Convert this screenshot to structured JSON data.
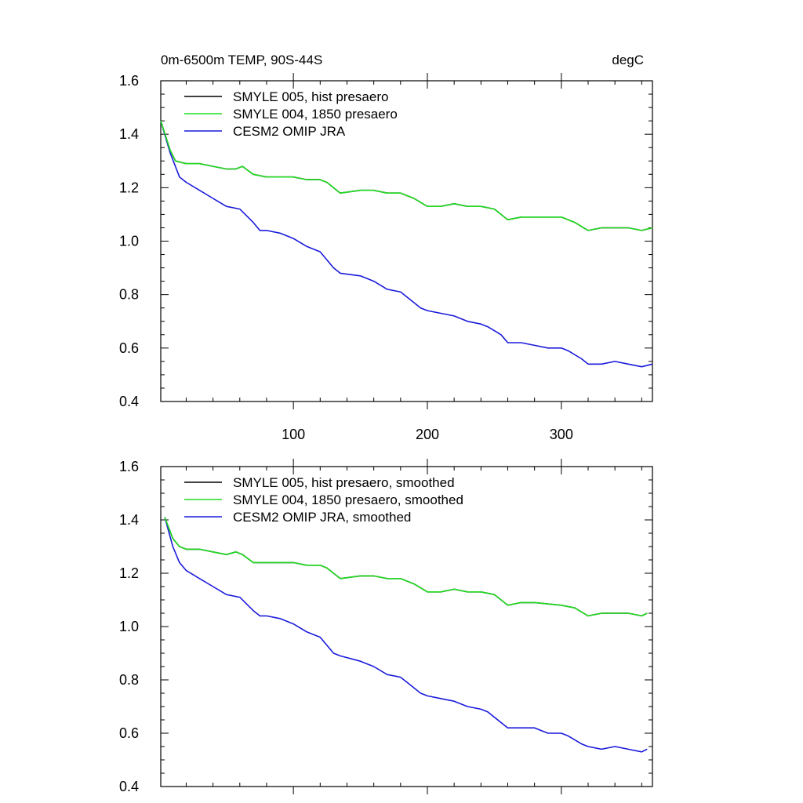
{
  "header": {
    "left": "0m-6500m TEMP, 90S-44S",
    "right": "degC"
  },
  "colors": {
    "hist": "#000000",
    "p1850": "#22dd22",
    "omip": "#1a1adb"
  },
  "chart_data": [
    {
      "type": "line",
      "title": "0m-6500m TEMP, 90S-44S",
      "units": "degC",
      "xlim": [
        1,
        368
      ],
      "ylim": [
        0.4,
        1.6
      ],
      "yticks": [
        "0.4",
        "0.6",
        "0.8",
        "1.0",
        "1.2",
        "1.4",
        "1.6"
      ],
      "xticks": [
        "100",
        "200",
        "300"
      ],
      "legend_position": "top-left",
      "series": [
        {
          "name": "SMYLE 005, hist presaero",
          "x": [
            1,
            8,
            12,
            20,
            30,
            40,
            50,
            57,
            62,
            70,
            80,
            90,
            100,
            110,
            120,
            125,
            135,
            150,
            160,
            170,
            180,
            190,
            200,
            210,
            220,
            230,
            240,
            250,
            260,
            270,
            280,
            300,
            310,
            320,
            330,
            340,
            350,
            360,
            368
          ],
          "values": [
            1.45,
            1.34,
            1.3,
            1.29,
            1.29,
            1.28,
            1.27,
            1.27,
            1.28,
            1.25,
            1.24,
            1.24,
            1.24,
            1.23,
            1.23,
            1.22,
            1.18,
            1.19,
            1.19,
            1.18,
            1.18,
            1.16,
            1.13,
            1.13,
            1.14,
            1.13,
            1.13,
            1.12,
            1.08,
            1.09,
            1.09,
            1.09,
            1.07,
            1.04,
            1.05,
            1.05,
            1.05,
            1.04,
            1.05
          ]
        },
        {
          "name": "SMYLE 004, 1850 presaero",
          "x": [
            1,
            8,
            12,
            20,
            30,
            40,
            50,
            57,
            62,
            70,
            80,
            90,
            100,
            110,
            120,
            125,
            135,
            150,
            160,
            170,
            180,
            190,
            200,
            210,
            220,
            230,
            240,
            250,
            260,
            270,
            280,
            300,
            310,
            320,
            330,
            340,
            350,
            360,
            368
          ],
          "values": [
            1.45,
            1.34,
            1.3,
            1.29,
            1.29,
            1.28,
            1.27,
            1.27,
            1.28,
            1.25,
            1.24,
            1.24,
            1.24,
            1.23,
            1.23,
            1.22,
            1.18,
            1.19,
            1.19,
            1.18,
            1.18,
            1.16,
            1.13,
            1.13,
            1.14,
            1.13,
            1.13,
            1.12,
            1.08,
            1.09,
            1.09,
            1.09,
            1.07,
            1.04,
            1.05,
            1.05,
            1.05,
            1.04,
            1.05
          ]
        },
        {
          "name": "CESM2 OMIP JRA",
          "x": [
            1,
            8,
            15,
            20,
            30,
            40,
            50,
            60,
            70,
            75,
            80,
            90,
            100,
            110,
            120,
            130,
            135,
            150,
            160,
            170,
            180,
            185,
            195,
            200,
            210,
            220,
            230,
            240,
            245,
            255,
            260,
            270,
            280,
            290,
            300,
            305,
            315,
            320,
            330,
            340,
            350,
            360,
            368
          ],
          "values": [
            1.45,
            1.33,
            1.24,
            1.22,
            1.19,
            1.16,
            1.13,
            1.12,
            1.07,
            1.04,
            1.04,
            1.03,
            1.01,
            0.98,
            0.96,
            0.9,
            0.88,
            0.87,
            0.85,
            0.82,
            0.81,
            0.79,
            0.75,
            0.74,
            0.73,
            0.72,
            0.7,
            0.69,
            0.68,
            0.65,
            0.62,
            0.62,
            0.61,
            0.6,
            0.6,
            0.59,
            0.56,
            0.54,
            0.54,
            0.55,
            0.54,
            0.53,
            0.54
          ]
        }
      ]
    },
    {
      "type": "line",
      "xlim": [
        1,
        368
      ],
      "ylim": [
        0.4,
        1.6
      ],
      "yticks": [
        "0.4",
        "0.6",
        "0.8",
        "1.0",
        "1.2",
        "1.4",
        "1.6"
      ],
      "xticks": [
        "",
        "",
        ""
      ],
      "legend_position": "top-left",
      "series": [
        {
          "name": "SMYLE 005, hist presaero, smoothed",
          "x": [
            4,
            10,
            15,
            20,
            30,
            40,
            50,
            57,
            62,
            70,
            80,
            90,
            100,
            110,
            120,
            125,
            135,
            150,
            160,
            170,
            180,
            190,
            200,
            210,
            220,
            230,
            240,
            250,
            260,
            270,
            280,
            300,
            310,
            320,
            330,
            340,
            350,
            360,
            364
          ],
          "values": [
            1.41,
            1.33,
            1.3,
            1.29,
            1.29,
            1.28,
            1.27,
            1.28,
            1.27,
            1.24,
            1.24,
            1.24,
            1.24,
            1.23,
            1.23,
            1.22,
            1.18,
            1.19,
            1.19,
            1.18,
            1.18,
            1.16,
            1.13,
            1.13,
            1.14,
            1.13,
            1.13,
            1.12,
            1.08,
            1.09,
            1.09,
            1.08,
            1.07,
            1.04,
            1.05,
            1.05,
            1.05,
            1.04,
            1.05
          ]
        },
        {
          "name": "SMYLE 004, 1850 presaero, smoothed",
          "x": [
            4,
            10,
            15,
            20,
            30,
            40,
            50,
            57,
            62,
            70,
            80,
            90,
            100,
            110,
            120,
            125,
            135,
            150,
            160,
            170,
            180,
            190,
            200,
            210,
            220,
            230,
            240,
            250,
            260,
            270,
            280,
            300,
            310,
            320,
            330,
            340,
            350,
            360,
            364
          ],
          "values": [
            1.41,
            1.33,
            1.3,
            1.29,
            1.29,
            1.28,
            1.27,
            1.28,
            1.27,
            1.24,
            1.24,
            1.24,
            1.24,
            1.23,
            1.23,
            1.22,
            1.18,
            1.19,
            1.19,
            1.18,
            1.18,
            1.16,
            1.13,
            1.13,
            1.14,
            1.13,
            1.13,
            1.12,
            1.08,
            1.09,
            1.09,
            1.08,
            1.07,
            1.04,
            1.05,
            1.05,
            1.05,
            1.04,
            1.05
          ]
        },
        {
          "name": "CESM2 OMIP JRA, smoothed",
          "x": [
            4,
            10,
            15,
            20,
            30,
            40,
            50,
            60,
            70,
            75,
            80,
            90,
            100,
            110,
            120,
            130,
            135,
            150,
            160,
            170,
            180,
            185,
            195,
            200,
            210,
            220,
            230,
            240,
            245,
            255,
            260,
            270,
            280,
            290,
            300,
            305,
            315,
            320,
            330,
            340,
            350,
            360,
            364
          ],
          "values": [
            1.41,
            1.3,
            1.24,
            1.21,
            1.18,
            1.15,
            1.12,
            1.11,
            1.06,
            1.04,
            1.04,
            1.03,
            1.01,
            0.98,
            0.96,
            0.9,
            0.89,
            0.87,
            0.85,
            0.82,
            0.81,
            0.79,
            0.75,
            0.74,
            0.73,
            0.72,
            0.7,
            0.69,
            0.68,
            0.64,
            0.62,
            0.62,
            0.62,
            0.6,
            0.6,
            0.59,
            0.56,
            0.55,
            0.54,
            0.55,
            0.54,
            0.53,
            0.54
          ]
        }
      ]
    }
  ]
}
